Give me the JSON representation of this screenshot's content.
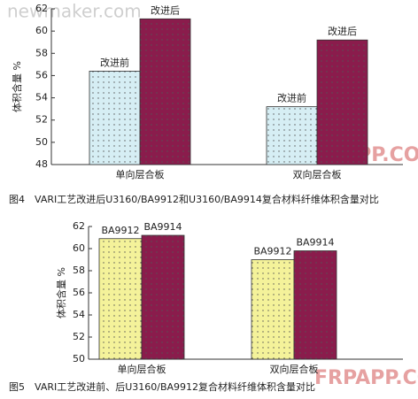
{
  "chart_data": [
    {
      "type": "bar",
      "ylabel": "体积含量 %",
      "caption": "图4　VARI工艺改进后U3160/BA9912和U3160/BA9914复合材料纤维体积含量对比",
      "categories": [
        "单向层合板",
        "双向层合板"
      ],
      "series": [
        {
          "name": "改进前",
          "color": "#d6eef4",
          "values": [
            56.4,
            53.2
          ]
        },
        {
          "name": "改进后",
          "color": "#8a1c4c",
          "values": [
            61.1,
            59.2
          ]
        }
      ],
      "ylim": [
        48,
        62
      ],
      "yticks": [
        48,
        50,
        52,
        54,
        56,
        58,
        60,
        62
      ]
    },
    {
      "type": "bar",
      "ylabel": "体积含量 %",
      "caption": "图5　VARI工艺改进前、后U3160/BA9912复合材料纤维体积含量对比",
      "categories": [
        "单向层合板",
        "双向层合板"
      ],
      "series": [
        {
          "name": "BA9912",
          "color": "#f4f29a",
          "values": [
            60.9,
            59.0
          ]
        },
        {
          "name": "BA9914",
          "color": "#8a1c4c",
          "values": [
            61.2,
            59.8
          ]
        }
      ],
      "ylim": [
        50,
        62
      ],
      "yticks": [
        50,
        52,
        54,
        56,
        58,
        60,
        62
      ]
    }
  ],
  "watermarks": [
    "newmaker.com",
    "FRPAPP.COM"
  ]
}
